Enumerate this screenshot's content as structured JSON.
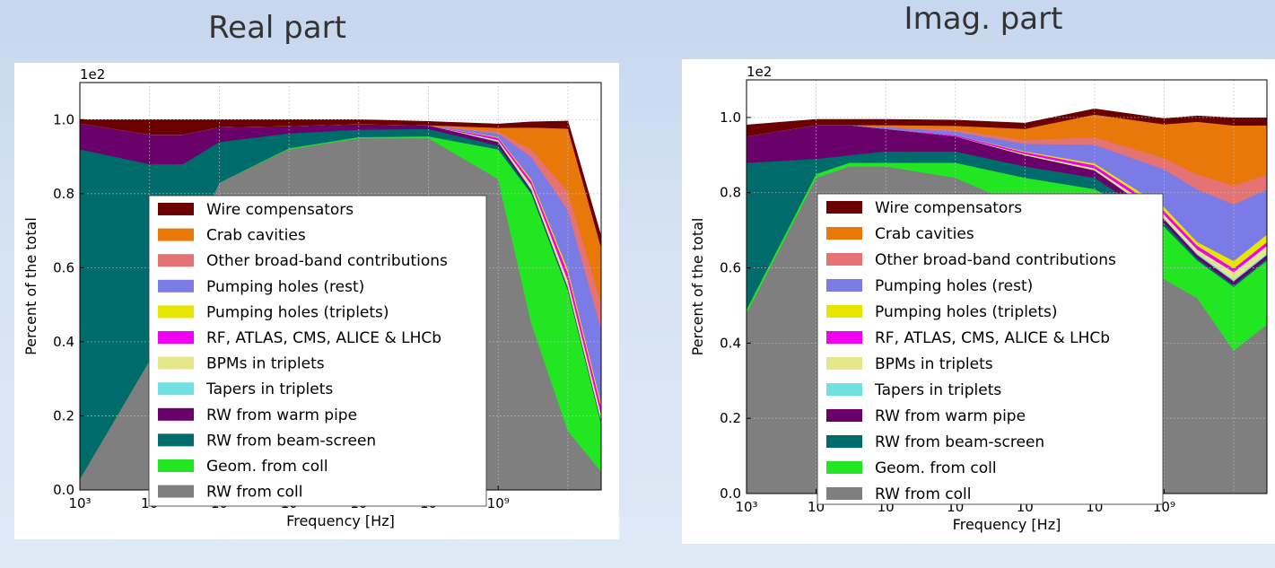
{
  "chart_data": [
    {
      "type": "area",
      "title": "Real part",
      "xlabel": "Frequency [Hz]",
      "ylabel": "Percent of the total",
      "scale_label": "1e2",
      "xscale": "log",
      "xlim": [
        1000,
        30000000000
      ],
      "ylim": [
        0,
        1.1
      ],
      "x_tick_labels": [
        "10³",
        "10",
        "10",
        "10",
        "10",
        "10",
        "10⁹"
      ],
      "y_tick_labels": [
        "0.0",
        "0.2",
        "0.4",
        "0.6",
        "0.8",
        "1.0"
      ],
      "grid": true,
      "legend_position": "center",
      "legend": [
        "Wire compensators",
        "Crab cavities",
        "Other broad-band contributions",
        "Pumping holes (rest)",
        "Pumping holes (triplets)",
        "RF, ATLAS, CMS, ALICE & LHCb",
        "BPMs in triplets",
        "Tapers in triplets",
        "RW from warm pipe",
        "RW from beam-screen",
        "Geom. from coll",
        "RW from coll"
      ],
      "x": [
        1000,
        10000,
        30000,
        100000,
        1000000,
        10000000,
        100000000,
        1000000000,
        3000000000,
        10000000000,
        30000000000
      ],
      "series": [
        {
          "name": "RW from coll",
          "values": [
            0.03,
            0.35,
            0.62,
            0.83,
            0.92,
            0.95,
            0.95,
            0.84,
            0.45,
            0.16,
            0.05
          ]
        },
        {
          "name": "Geom. from coll",
          "values": [
            0.0,
            0.0,
            0.0,
            0.0,
            0.003,
            0.003,
            0.005,
            0.08,
            0.35,
            0.38,
            0.13
          ]
        },
        {
          "name": "RW from beam-screen",
          "values": [
            0.89,
            0.53,
            0.26,
            0.11,
            0.04,
            0.02,
            0.02,
            0.01,
            0.005,
            0.003,
            0.002
          ]
        },
        {
          "name": "RW from warm pipe",
          "values": [
            0.07,
            0.08,
            0.08,
            0.04,
            0.02,
            0.015,
            0.01,
            0.01,
            0.005,
            0.004,
            0.004
          ]
        },
        {
          "name": "Tapers in triplets",
          "values": [
            0.0,
            0.0,
            0.0,
            0.0,
            0.0,
            0.0,
            0.0,
            0.002,
            0.004,
            0.004,
            0.004
          ]
        },
        {
          "name": "BPMs in triplets",
          "values": [
            0.0,
            0.0,
            0.0,
            0.0,
            0.0,
            0.0,
            0.0,
            0.003,
            0.01,
            0.015,
            0.015
          ]
        },
        {
          "name": "RF, ATLAS, CMS, ALICE & LHCb",
          "values": [
            0.0,
            0.0,
            0.0,
            0.0,
            0.0,
            0.0,
            0.0,
            0.006,
            0.01,
            0.02,
            0.02
          ]
        },
        {
          "name": "Pumping holes (triplets)",
          "values": [
            0.0,
            0.0,
            0.0,
            0.0,
            0.0,
            0.0,
            0.0,
            0.002,
            0.005,
            0.01,
            0.01
          ]
        },
        {
          "name": "Pumping holes (rest)",
          "values": [
            0.0,
            0.0,
            0.0,
            0.0,
            0.0,
            0.0,
            0.0,
            0.01,
            0.06,
            0.16,
            0.2
          ]
        },
        {
          "name": "Other broad-band contributions",
          "values": [
            0.0,
            0.0,
            0.0,
            0.0,
            0.0,
            0.0,
            0.0,
            0.005,
            0.02,
            0.05,
            0.07
          ]
        },
        {
          "name": "Crab cavities",
          "values": [
            0.0,
            0.0,
            0.0,
            0.0,
            0.0,
            0.0,
            0.0,
            0.01,
            0.06,
            0.17,
            0.15
          ]
        },
        {
          "name": "Wire compensators",
          "values": [
            0.01,
            0.04,
            0.04,
            0.02,
            0.017,
            0.012,
            0.01,
            0.01,
            0.015,
            0.02,
            0.03
          ]
        }
      ]
    },
    {
      "type": "area",
      "title": "Imag. part",
      "xlabel": "Frequency [Hz]",
      "ylabel": "Percent of the total",
      "scale_label": "1e2",
      "xscale": "log",
      "xlim": [
        1000,
        30000000000
      ],
      "ylim": [
        0,
        1.1
      ],
      "x_tick_labels": [
        "10³",
        "10",
        "10",
        "10",
        "10",
        "10",
        "10⁹"
      ],
      "y_tick_labels": [
        "0.0",
        "0.2",
        "0.4",
        "0.6",
        "0.8",
        "1.0"
      ],
      "grid": true,
      "legend_position": "center",
      "legend": [
        "Wire compensators",
        "Crab cavities",
        "Other broad-band contributions",
        "Pumping holes (rest)",
        "Pumping holes (triplets)",
        "RF, ATLAS, CMS, ALICE & LHCb",
        "BPMs in triplets",
        "Tapers in triplets",
        "RW from warm pipe",
        "RW from beam-screen",
        "Geom. from coll",
        "RW from coll"
      ],
      "x": [
        1000,
        10000,
        30000,
        100000,
        1000000,
        10000000,
        100000000,
        1000000000,
        3000000000,
        10000000000,
        30000000000
      ],
      "series": [
        {
          "name": "RW from coll",
          "values": [
            0.48,
            0.84,
            0.87,
            0.87,
            0.84,
            0.76,
            0.68,
            0.57,
            0.52,
            0.38,
            0.45
          ]
        },
        {
          "name": "Geom. from coll",
          "values": [
            0.01,
            0.01,
            0.01,
            0.01,
            0.04,
            0.08,
            0.13,
            0.14,
            0.1,
            0.17,
            0.17
          ]
        },
        {
          "name": "RW from beam-screen",
          "values": [
            0.39,
            0.04,
            0.02,
            0.03,
            0.03,
            0.03,
            0.03,
            0.01,
            0.005,
            0.005,
            0.005
          ]
        },
        {
          "name": "RW from warm pipe",
          "values": [
            0.07,
            0.09,
            0.08,
            0.06,
            0.04,
            0.03,
            0.02,
            0.01,
            0.01,
            0.01,
            0.01
          ]
        },
        {
          "name": "Tapers in triplets",
          "values": [
            0.0,
            0.0,
            0.0,
            0.0,
            0.0,
            0.0,
            0.0,
            0.002,
            0.004,
            0.004,
            0.004
          ]
        },
        {
          "name": "BPMs in triplets",
          "values": [
            0.0,
            0.0,
            0.0,
            0.0,
            0.0,
            0.003,
            0.005,
            0.01,
            0.01,
            0.02,
            0.02
          ]
        },
        {
          "name": "RF, ATLAS, CMS, ALICE & LHCb",
          "values": [
            0.0,
            0.0,
            0.0,
            0.0,
            0.003,
            0.005,
            0.008,
            0.01,
            0.01,
            0.01,
            0.01
          ]
        },
        {
          "name": "Pumping holes (triplets)",
          "values": [
            0.0,
            0.0,
            0.0,
            0.0,
            0.0,
            0.002,
            0.005,
            0.01,
            0.01,
            0.02,
            0.02
          ]
        },
        {
          "name": "Pumping holes (rest)",
          "values": [
            0.0,
            0.0,
            0.0,
            0.005,
            0.01,
            0.02,
            0.05,
            0.1,
            0.14,
            0.15,
            0.12
          ]
        },
        {
          "name": "Other broad-band contributions",
          "values": [
            0.0,
            0.0,
            0.0,
            0.0,
            0.005,
            0.01,
            0.02,
            0.03,
            0.04,
            0.05,
            0.04
          ]
        },
        {
          "name": "Crab cavities",
          "values": [
            0.0,
            0.0,
            0.0,
            0.005,
            0.01,
            0.03,
            0.06,
            0.09,
            0.14,
            0.16,
            0.13
          ]
        },
        {
          "name": "Wire compensators",
          "values": [
            0.03,
            0.015,
            0.015,
            0.015,
            0.015,
            0.015,
            0.015,
            0.015,
            0.015,
            0.02,
            0.02
          ]
        }
      ]
    }
  ],
  "colors": {
    "Wire compensators": "#6b0000",
    "Crab cavities": "#e8780a",
    "Other broad-band contributions": "#e57373",
    "Pumping holes (rest)": "#7b7be6",
    "Pumping holes (triplets)": "#e6e600",
    "RF, ATLAS, CMS, ALICE & LHCb": "#f000f0",
    "BPMs in triplets": "#e6e68a",
    "Tapers in triplets": "#70e0e0",
    "RW from warm pipe": "#6a006a",
    "RW from beam-screen": "#006b6b",
    "Geom. from coll": "#22e622",
    "RW from coll": "#7f7f7f"
  }
}
